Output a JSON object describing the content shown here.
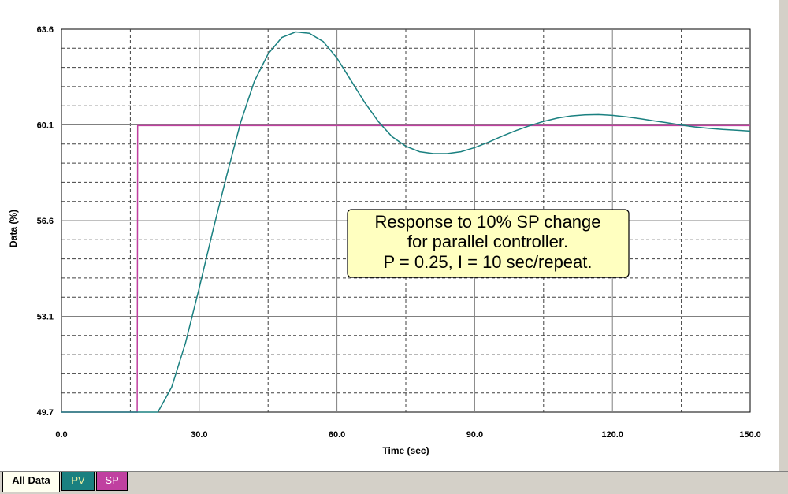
{
  "chart_data": {
    "type": "line",
    "title": "",
    "xlabel": "Time (sec)",
    "ylabel": "Data (%)",
    "xlim": [
      0,
      150
    ],
    "ylim": [
      49.7,
      63.6
    ],
    "x_ticks": [
      "0.0",
      "30.0",
      "60.0",
      "90.0",
      "120.0",
      "150.0"
    ],
    "y_ticks": [
      "49.7",
      "53.1",
      "56.6",
      "60.1",
      "63.6"
    ],
    "grid": true,
    "series": [
      {
        "name": "PV",
        "color": "#1a8080",
        "x": [
          0,
          21,
          24,
          27,
          30,
          33,
          36,
          39,
          42,
          45,
          48,
          51,
          54,
          57,
          60,
          63,
          66,
          69,
          72,
          75,
          78,
          81,
          84,
          87,
          90,
          93,
          96,
          99,
          102,
          105,
          108,
          111,
          114,
          117,
          120,
          123,
          126,
          129,
          132,
          135,
          138,
          141,
          144,
          147,
          150
        ],
        "y": [
          49.7,
          49.7,
          50.6,
          52.2,
          54.2,
          56.3,
          58.3,
          60.2,
          61.7,
          62.7,
          63.3,
          63.5,
          63.45,
          63.15,
          62.55,
          61.75,
          60.95,
          60.25,
          59.7,
          59.35,
          59.15,
          59.08,
          59.08,
          59.15,
          59.3,
          59.5,
          59.72,
          59.92,
          60.1,
          60.25,
          60.37,
          60.45,
          60.49,
          60.5,
          60.47,
          60.42,
          60.35,
          60.27,
          60.2,
          60.12,
          60.05,
          60.0,
          59.96,
          59.93,
          59.9
        ]
      },
      {
        "name": "SP",
        "color": "#c040a0",
        "x": [
          0,
          16.5,
          16.6,
          150
        ],
        "y": [
          49.7,
          49.7,
          60.1,
          60.1
        ]
      }
    ],
    "annotation": {
      "lines": [
        "Response to 10% SP change",
        "for parallel controller.",
        "P = 0.25, I = 10 sec/repeat."
      ]
    }
  },
  "tabs": [
    {
      "label": "All Data",
      "color": "#fffff0"
    },
    {
      "label": "PV",
      "color": "#1a8080"
    },
    {
      "label": "SP",
      "color": "#c040a0"
    }
  ]
}
